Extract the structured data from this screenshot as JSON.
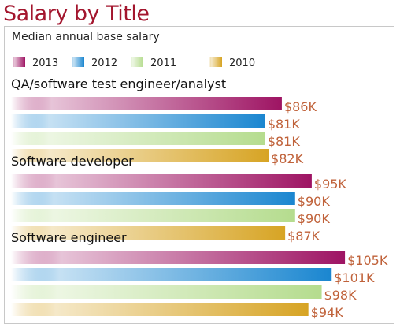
{
  "title": "Salary by Title",
  "subtitle": "Median annual base salary",
  "chart_data": {
    "type": "bar",
    "orientation": "horizontal",
    "title": "Salary by Title",
    "subtitle": "Median annual base salary",
    "legend_position": "top-left",
    "categories": [
      "QA/software test engineer/analyst",
      "Software developer",
      "Software engineer"
    ],
    "series": [
      {
        "name": "2013",
        "values": [
          86,
          95,
          105
        ],
        "labels": [
          "$86K",
          "$95K",
          "$105K"
        ],
        "color": "#9e1463"
      },
      {
        "name": "2012",
        "values": [
          81,
          90,
          101
        ],
        "labels": [
          "$81K",
          "$90K",
          "$101K"
        ],
        "color": "#1a86d0"
      },
      {
        "name": "2011",
        "values": [
          81,
          90,
          98
        ],
        "labels": [
          "$81K",
          "$90K",
          "$98K"
        ],
        "color": "#b5dc8e"
      },
      {
        "name": "2010",
        "values": [
          82,
          87,
          94
        ],
        "labels": [
          "$82K",
          "$87K",
          "$94K"
        ],
        "color": "#d7a424"
      }
    ],
    "label_color": "#c0623a"
  }
}
